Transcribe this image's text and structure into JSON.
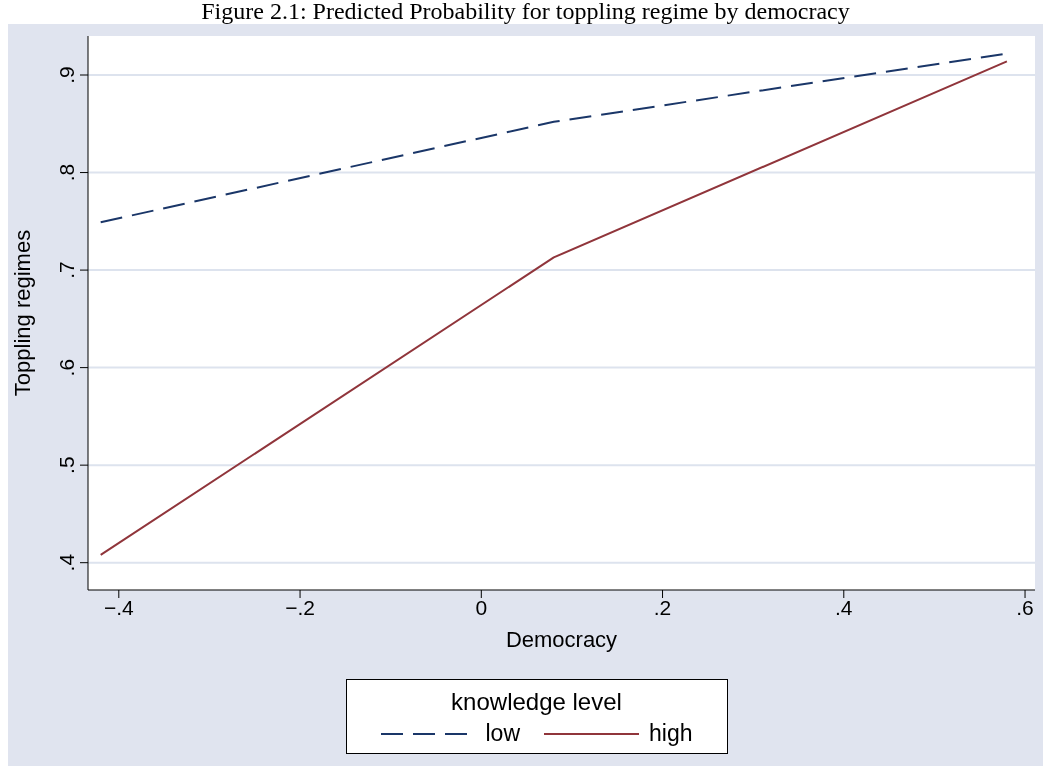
{
  "chart_data": {
    "type": "line",
    "title": "Figure 2.1: Predicted Probability for toppling regime by democracy",
    "xlabel": "Democracy",
    "ylabel": "Toppling regimes",
    "legend_title": "knowledge level",
    "x": [
      -0.42,
      0.08,
      0.58
    ],
    "series": [
      {
        "name": "low",
        "color": "#1a3668",
        "values": [
          0.749,
          0.852,
          0.922
        ],
        "line_style": "dashed"
      },
      {
        "name": "high",
        "color": "#90353b",
        "values": [
          0.408,
          0.713,
          0.914
        ],
        "line_style": "solid"
      }
    ],
    "xlim": [
      -0.434,
      0.611
    ],
    "xticks": [
      {
        "value": -0.4,
        "label": "−.4"
      },
      {
        "value": -0.2,
        "label": "−.2"
      },
      0,
      {
        "value": 0.2,
        "label": ".2"
      },
      {
        "value": 0.4,
        "label": ".4"
      },
      {
        "value": 0.6,
        "label": ".6"
      }
    ],
    "ylim": [
      0.372,
      0.94
    ],
    "yticks": [
      {
        "value": 0.4,
        "label": ".4"
      },
      {
        "value": 0.5,
        "label": ".5"
      },
      {
        "value": 0.6,
        "label": ".6"
      },
      {
        "value": 0.7,
        "label": ".7"
      },
      {
        "value": 0.8,
        "label": ".8"
      },
      {
        "value": 0.9,
        "label": ".9"
      }
    ],
    "grid": "y",
    "legend": "bottom",
    "marker": "none"
  }
}
